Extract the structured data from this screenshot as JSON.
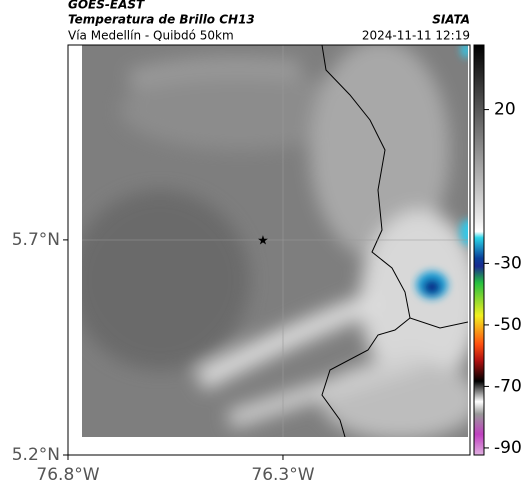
{
  "header": {
    "satellite": "GOES-EAST",
    "product": "Temperatura de Brillo CH13",
    "source": "SIATA",
    "region": "Vía Medellín - Quibdó 50km",
    "timestamp": "2024-11-11 12:19"
  },
  "map": {
    "xlim": [
      -76.8,
      -75.865
    ],
    "ylim": [
      5.2,
      6.153
    ],
    "xticks": [
      {
        "value": -76.8,
        "label": "76.8°W"
      },
      {
        "value": -76.3,
        "label": "76.3°W"
      }
    ],
    "yticks": [
      {
        "value": 5.2,
        "label": "5.2°N"
      },
      {
        "value": 5.7,
        "label": "5.7°N"
      }
    ],
    "colorbar": {
      "lim": [
        -92.3,
        41
      ],
      "ticks": [
        20,
        -30,
        -50,
        -70,
        -90
      ]
    }
  }
}
